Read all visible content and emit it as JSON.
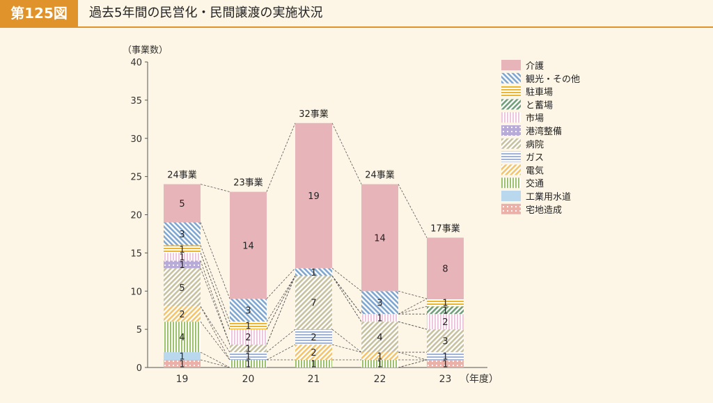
{
  "header": {
    "figure_no": "第125図",
    "title": "過去5年間の民営化・民間譲渡の実施状況"
  },
  "chart_data": {
    "type": "bar",
    "stacked": true,
    "ylabel": "（事業数）",
    "xunit": "（年度）",
    "ylim": [
      0,
      40
    ],
    "yticks": [
      0,
      5,
      10,
      15,
      20,
      25,
      30,
      35,
      40
    ],
    "categories": [
      "19",
      "20",
      "21",
      "22",
      "23"
    ],
    "totals": [
      "24事業",
      "23事業",
      "32事業",
      "24事業",
      "17事業"
    ],
    "series": [
      {
        "name": "宅地造成",
        "color": "#ebb1a8",
        "pattern": "dots",
        "values": [
          1,
          0,
          0,
          0,
          1
        ]
      },
      {
        "name": "工業用水道",
        "color": "#b9d8ee",
        "pattern": "solid",
        "values": [
          1,
          0,
          0,
          0,
          0
        ]
      },
      {
        "name": "交通",
        "color": "#9dc36a",
        "pattern": "vline",
        "values": [
          4,
          1,
          1,
          1,
          0
        ]
      },
      {
        "name": "電気",
        "color": "#f2c46e",
        "pattern": "diag",
        "values": [
          2,
          0,
          2,
          1,
          0
        ]
      },
      {
        "name": "ガス",
        "color": "#9fb4d8",
        "pattern": "hline",
        "values": [
          0,
          1,
          2,
          0,
          1
        ]
      },
      {
        "name": "病院",
        "color": "#c7c1a0",
        "pattern": "diag",
        "values": [
          5,
          1,
          7,
          4,
          3
        ]
      },
      {
        "name": "港湾整備",
        "color": "#b8abd8",
        "pattern": "dots",
        "values": [
          1,
          0,
          0,
          0,
          0
        ]
      },
      {
        "name": "市場",
        "color": "#f0c6de",
        "pattern": "vline",
        "values": [
          1,
          2,
          0,
          1,
          2
        ]
      },
      {
        "name": "と蓄場",
        "color": "#6f9e79",
        "pattern": "diag",
        "values": [
          0,
          0,
          0,
          0,
          1
        ]
      },
      {
        "name": "駐車場",
        "color": "#f0b62a",
        "pattern": "hline",
        "values": [
          1,
          1,
          0,
          0,
          1
        ]
      },
      {
        "name": "観光・その他",
        "color": "#7ea6cf",
        "pattern": "diag2",
        "values": [
          3,
          3,
          1,
          3,
          0
        ]
      },
      {
        "name": "介護",
        "color": "#e7b4ba",
        "pattern": "solid",
        "values": [
          5,
          14,
          19,
          14,
          8
        ]
      }
    ],
    "legend": [
      "介護",
      "観光・その他",
      "駐車場",
      "と蓄場",
      "市場",
      "港湾整備",
      "病院",
      "ガス",
      "電気",
      "交通",
      "工業用水道",
      "宅地造成"
    ],
    "legend_position": "right"
  }
}
